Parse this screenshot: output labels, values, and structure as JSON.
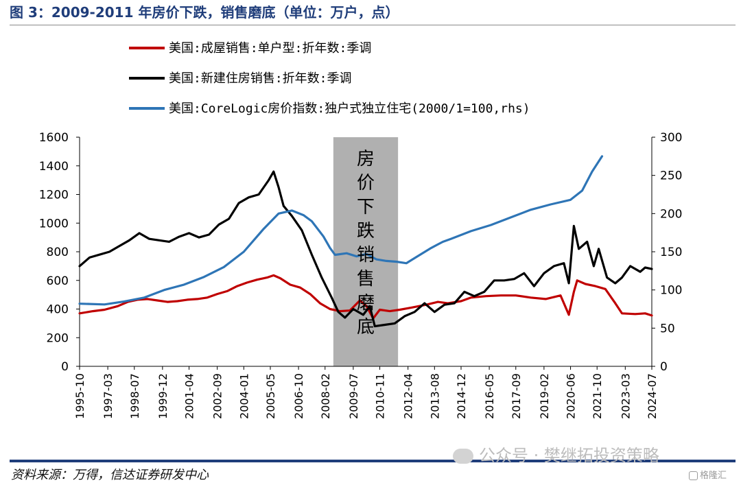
{
  "header": {
    "title": "图 3：2009-2011 年房价下跌，销售磨底（单位：万户，点）"
  },
  "footer": {
    "source": "资料来源：万得，信达证券研发中心"
  },
  "watermark": {
    "text": "公众号 · 樊继拓投资策略",
    "badge": "格隆汇"
  },
  "chart_data": {
    "type": "line",
    "title": "",
    "xlabel": "",
    "ylabel": "",
    "y2label": "",
    "ylim": [
      0,
      1600
    ],
    "y2lim": [
      0,
      300
    ],
    "yticks": [
      0,
      200,
      400,
      600,
      800,
      1000,
      1200,
      1400,
      1600
    ],
    "y2ticks": [
      0,
      50,
      100,
      150,
      200,
      250,
      300
    ],
    "x_range": [
      "1995-10",
      "2024-07"
    ],
    "x_ticks": [
      "1995-10",
      "1997-03",
      "1998-07",
      "1999-12",
      "2001-04",
      "2002-09",
      "2004-01",
      "2005-05",
      "2006-10",
      "2008-02",
      "2009-07",
      "2010-11",
      "2012-04",
      "2013-08",
      "2014-12",
      "2016-05",
      "2017-09",
      "2019-02",
      "2020-06",
      "2021-10",
      "2023-03",
      "2024-07"
    ],
    "legend_position": "top-left",
    "grid": false,
    "shaded_region": {
      "start": "2008-07",
      "end": "2011-10",
      "label": "房价下跌销售磨底",
      "color": "#b0b0b0"
    },
    "series": [
      {
        "name": "美国:成屋销售:单户型:折年数:季调",
        "axis": "left",
        "color": "#c00000",
        "points": [
          [
            "1995-10",
            370
          ],
          [
            "1996-06",
            385
          ],
          [
            "1997-01",
            395
          ],
          [
            "1997-09",
            420
          ],
          [
            "1998-03",
            450
          ],
          [
            "1998-09",
            465
          ],
          [
            "1999-03",
            470
          ],
          [
            "1999-09",
            460
          ],
          [
            "2000-03",
            450
          ],
          [
            "2000-09",
            455
          ],
          [
            "2001-03",
            465
          ],
          [
            "2001-09",
            470
          ],
          [
            "2002-03",
            480
          ],
          [
            "2002-09",
            505
          ],
          [
            "2003-03",
            525
          ],
          [
            "2003-09",
            560
          ],
          [
            "2004-03",
            585
          ],
          [
            "2004-09",
            605
          ],
          [
            "2005-03",
            620
          ],
          [
            "2005-07",
            635
          ],
          [
            "2005-11",
            615
          ],
          [
            "2006-05",
            570
          ],
          [
            "2006-11",
            550
          ],
          [
            "2007-05",
            505
          ],
          [
            "2007-11",
            440
          ],
          [
            "2008-05",
            400
          ],
          [
            "2008-11",
            385
          ],
          [
            "2009-05",
            390
          ],
          [
            "2009-11",
            460
          ],
          [
            "2010-03",
            420
          ],
          [
            "2010-07",
            335
          ],
          [
            "2010-11",
            395
          ],
          [
            "2011-05",
            385
          ],
          [
            "2011-11",
            395
          ],
          [
            "2012-06",
            410
          ],
          [
            "2013-03",
            430
          ],
          [
            "2013-10",
            450
          ],
          [
            "2014-04",
            440
          ],
          [
            "2014-12",
            455
          ],
          [
            "2015-06",
            480
          ],
          [
            "2016-03",
            490
          ],
          [
            "2016-12",
            495
          ],
          [
            "2017-09",
            495
          ],
          [
            "2018-06",
            480
          ],
          [
            "2019-03",
            470
          ],
          [
            "2019-12",
            495
          ],
          [
            "2020-05",
            360
          ],
          [
            "2020-08",
            520
          ],
          [
            "2020-10",
            600
          ],
          [
            "2021-03",
            575
          ],
          [
            "2021-09",
            560
          ],
          [
            "2022-03",
            540
          ],
          [
            "2022-09",
            440
          ],
          [
            "2023-01",
            370
          ],
          [
            "2023-09",
            365
          ],
          [
            "2024-03",
            370
          ],
          [
            "2024-07",
            355
          ]
        ]
      },
      {
        "name": "美国:新建住房销售:折年数:季调",
        "axis": "left",
        "color": "#000000",
        "points": [
          [
            "1995-10",
            700
          ],
          [
            "1996-04",
            760
          ],
          [
            "1996-10",
            780
          ],
          [
            "1997-04",
            800
          ],
          [
            "1997-10",
            840
          ],
          [
            "1998-04",
            880
          ],
          [
            "1998-10",
            930
          ],
          [
            "1999-04",
            890
          ],
          [
            "1999-10",
            880
          ],
          [
            "2000-04",
            870
          ],
          [
            "2000-10",
            905
          ],
          [
            "2001-04",
            930
          ],
          [
            "2001-10",
            900
          ],
          [
            "2002-04",
            920
          ],
          [
            "2002-10",
            990
          ],
          [
            "2003-04",
            1030
          ],
          [
            "2003-10",
            1140
          ],
          [
            "2004-04",
            1180
          ],
          [
            "2004-10",
            1200
          ],
          [
            "2005-04",
            1300
          ],
          [
            "2005-07",
            1360
          ],
          [
            "2005-10",
            1250
          ],
          [
            "2006-01",
            1120
          ],
          [
            "2006-06",
            1050
          ],
          [
            "2006-12",
            950
          ],
          [
            "2007-06",
            780
          ],
          [
            "2007-12",
            620
          ],
          [
            "2008-06",
            480
          ],
          [
            "2008-10",
            380
          ],
          [
            "2009-02",
            340
          ],
          [
            "2009-07",
            400
          ],
          [
            "2010-01",
            360
          ],
          [
            "2010-05",
            420
          ],
          [
            "2010-08",
            280
          ],
          [
            "2011-02",
            290
          ],
          [
            "2011-08",
            300
          ],
          [
            "2012-02",
            350
          ],
          [
            "2012-08",
            380
          ],
          [
            "2013-02",
            440
          ],
          [
            "2013-08",
            380
          ],
          [
            "2014-02",
            430
          ],
          [
            "2014-08",
            440
          ],
          [
            "2015-02",
            520
          ],
          [
            "2015-08",
            490
          ],
          [
            "2016-02",
            520
          ],
          [
            "2016-08",
            600
          ],
          [
            "2017-02",
            600
          ],
          [
            "2017-08",
            610
          ],
          [
            "2018-02",
            650
          ],
          [
            "2018-08",
            560
          ],
          [
            "2019-02",
            650
          ],
          [
            "2019-08",
            700
          ],
          [
            "2020-02",
            720
          ],
          [
            "2020-05",
            580
          ],
          [
            "2020-08",
            980
          ],
          [
            "2020-11",
            820
          ],
          [
            "2021-04",
            870
          ],
          [
            "2021-08",
            700
          ],
          [
            "2021-11",
            820
          ],
          [
            "2022-04",
            620
          ],
          [
            "2022-09",
            580
          ],
          [
            "2023-01",
            620
          ],
          [
            "2023-06",
            700
          ],
          [
            "2023-12",
            660
          ],
          [
            "2024-03",
            690
          ],
          [
            "2024-07",
            680
          ]
        ]
      },
      {
        "name": "美国:CoreLogic房价指数:独户式独立住宅(2000/1=100,rhs)",
        "axis": "right",
        "color": "#2e75b6",
        "points": [
          [
            "1995-10",
            82
          ],
          [
            "1997-01",
            81
          ],
          [
            "1998-01",
            85
          ],
          [
            "1999-01",
            90
          ],
          [
            "2000-01",
            100
          ],
          [
            "2001-01",
            107
          ],
          [
            "2002-01",
            117
          ],
          [
            "2003-01",
            130
          ],
          [
            "2004-01",
            150
          ],
          [
            "2005-01",
            180
          ],
          [
            "2005-10",
            200
          ],
          [
            "2006-06",
            204
          ],
          [
            "2007-01",
            198
          ],
          [
            "2007-06",
            190
          ],
          [
            "2008-01",
            170
          ],
          [
            "2008-05",
            155
          ],
          [
            "2008-08",
            146
          ],
          [
            "2009-03",
            148
          ],
          [
            "2009-09",
            144
          ],
          [
            "2010-03",
            147
          ],
          [
            "2010-09",
            140
          ],
          [
            "2011-03",
            138
          ],
          [
            "2011-09",
            137
          ],
          [
            "2012-03",
            135
          ],
          [
            "2012-09",
            143
          ],
          [
            "2013-06",
            155
          ],
          [
            "2014-01",
            163
          ],
          [
            "2014-06",
            167
          ],
          [
            "2015-06",
            177
          ],
          [
            "2016-06",
            185
          ],
          [
            "2017-06",
            195
          ],
          [
            "2018-06",
            205
          ],
          [
            "2019-06",
            212
          ],
          [
            "2020-06",
            218
          ],
          [
            "2021-01",
            230
          ],
          [
            "2021-07",
            255
          ],
          [
            "2022-01",
            275
          ]
        ]
      }
    ]
  }
}
